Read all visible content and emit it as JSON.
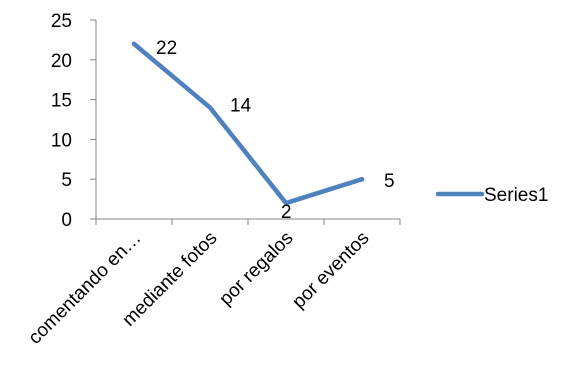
{
  "chart_data": {
    "type": "line",
    "categories": [
      "comentando en…",
      "mediante fotos",
      "por regalos",
      "por eventos"
    ],
    "series": [
      {
        "name": "Series1",
        "values": [
          22,
          14,
          2,
          5
        ],
        "color": "#4f81bd"
      }
    ],
    "ylim": [
      0,
      25
    ],
    "yticks": [
      0,
      5,
      10,
      15,
      20,
      25
    ],
    "data_labels": [
      "22",
      "14",
      "2",
      "5"
    ],
    "grid": false,
    "legend_position": "right"
  }
}
